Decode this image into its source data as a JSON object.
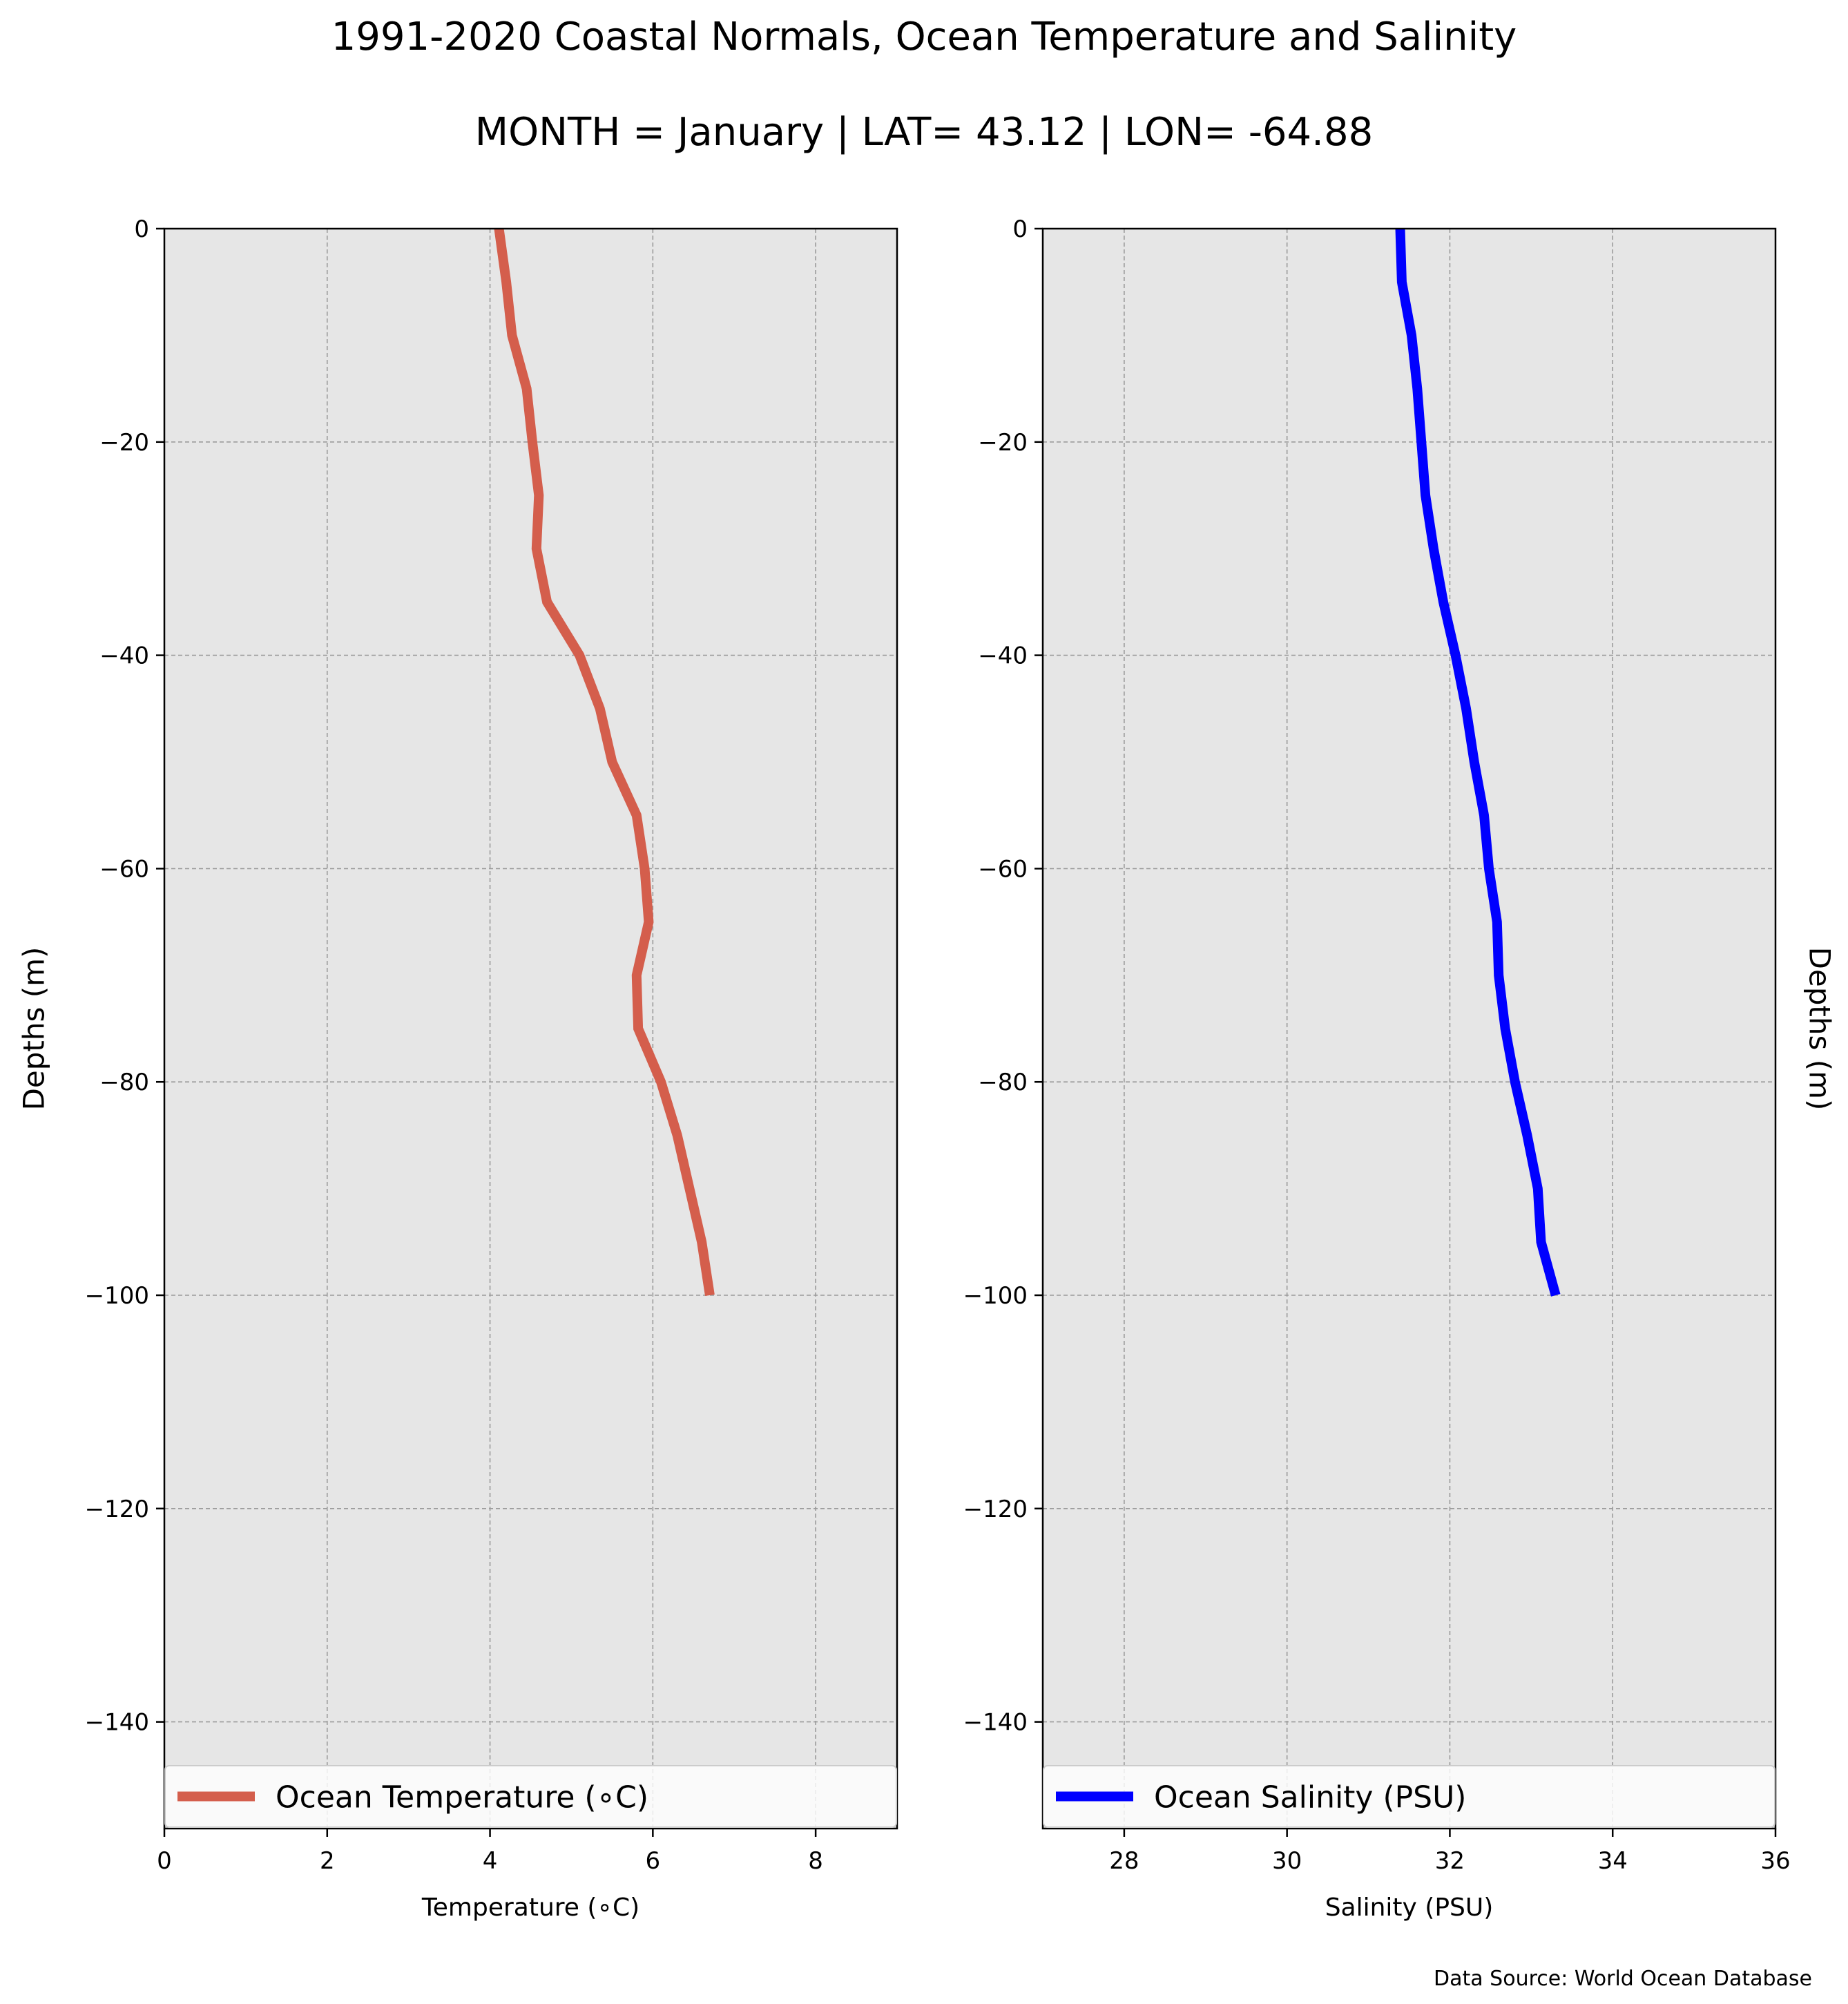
{
  "figure": {
    "title": "1991-2020 Coastal Normals, Ocean Temperature and Salinity",
    "subtitle": "MONTH = January | LAT= 43.12 | LON= -64.88",
    "source_note": "Data Source: World Ocean Database"
  },
  "chart_data": [
    {
      "type": "line",
      "xlabel": "Temperature (∘C)",
      "ylabel": "Depths (m)",
      "xlim": [
        0,
        9
      ],
      "ylim": [
        -150,
        0
      ],
      "xticks": [
        0,
        2,
        4,
        6,
        8
      ],
      "xtick_labels": [
        "0",
        "2",
        "4",
        "6",
        "8"
      ],
      "yticks": [
        0,
        -20,
        -40,
        -60,
        -80,
        -100,
        -120,
        -140
      ],
      "ytick_labels": [
        "0",
        "−20",
        "−40",
        "−60",
        "−80",
        "−100",
        "−120",
        "−140"
      ],
      "grid": true,
      "legend_position": "bottom",
      "series": [
        {
          "name": "Ocean Temperature (∘C)",
          "color": "#d45e4c",
          "x": [
            4.11,
            4.2,
            4.27,
            4.45,
            4.52,
            4.6,
            4.57,
            4.7,
            5.1,
            5.35,
            5.5,
            5.8,
            5.9,
            5.95,
            5.8,
            5.82,
            6.1,
            6.3,
            6.45,
            6.6,
            6.7
          ],
          "y": [
            0,
            -5,
            -10,
            -15,
            -20,
            -25,
            -30,
            -35,
            -40,
            -45,
            -50,
            -55,
            -60,
            -65,
            -70,
            -75,
            -80,
            -85,
            -90,
            -95,
            -100
          ]
        }
      ],
      "background": "#e6e6e6"
    },
    {
      "type": "line",
      "xlabel": "Salinity (PSU)",
      "ylabel": "Depths (m)",
      "xlim": [
        27,
        36
      ],
      "ylim": [
        -150,
        0
      ],
      "xticks": [
        28,
        30,
        32,
        34,
        36
      ],
      "xtick_labels": [
        "28",
        "30",
        "32",
        "34",
        "36"
      ],
      "yticks": [
        0,
        -20,
        -40,
        -60,
        -80,
        -100,
        -120,
        -140
      ],
      "ytick_labels": [
        "0",
        "−20",
        "−40",
        "−60",
        "−80",
        "−100",
        "−120",
        "−140"
      ],
      "grid": true,
      "legend_position": "bottom",
      "series": [
        {
          "name": "Ocean Salinity (PSU)",
          "color": "#0000ff",
          "x": [
            31.39,
            31.41,
            31.53,
            31.6,
            31.65,
            31.7,
            31.8,
            31.92,
            32.07,
            32.2,
            32.3,
            32.42,
            32.48,
            32.58,
            32.6,
            32.68,
            32.8,
            32.95,
            33.08,
            33.12,
            33.3
          ],
          "y": [
            0,
            -5,
            -10,
            -15,
            -20,
            -25,
            -30,
            -35,
            -40,
            -45,
            -50,
            -55,
            -60,
            -65,
            -70,
            -75,
            -80,
            -85,
            -90,
            -95,
            -100
          ]
        }
      ],
      "background": "#e6e6e6"
    }
  ]
}
